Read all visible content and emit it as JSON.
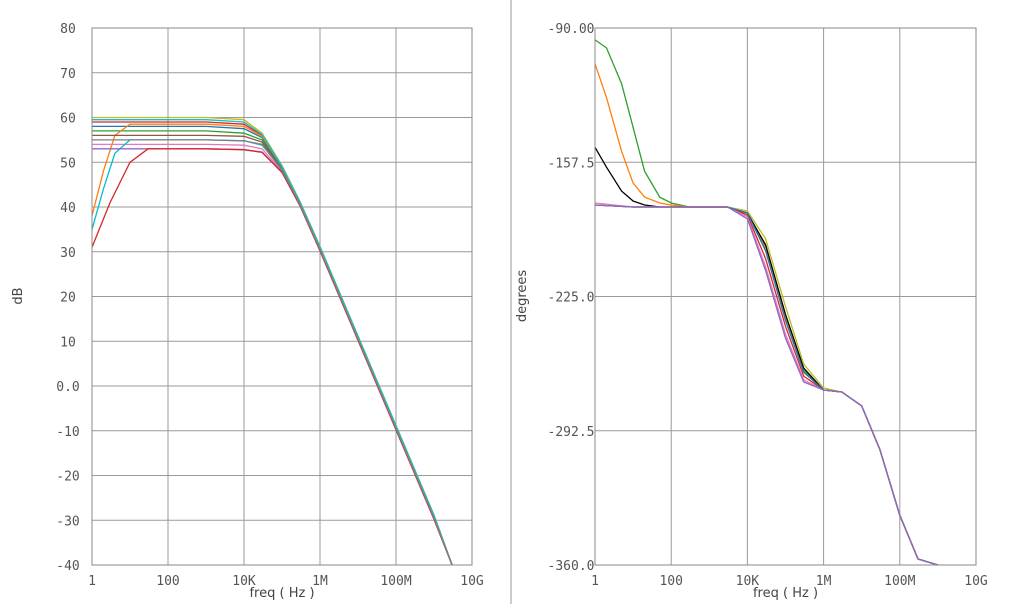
{
  "chart_data": [
    {
      "type": "line",
      "xscale": "log",
      "xlim": [
        1,
        10000000000.0
      ],
      "ylim": [
        -40,
        80
      ],
      "xlabel": "freq ( Hz )",
      "ylabel": "dB",
      "xtick_labels": [
        "1",
        "100",
        "10K",
        "1M",
        "100M",
        "10G"
      ],
      "ytick_labels": [
        "80",
        "70",
        "60",
        "50",
        "40",
        "30",
        "20",
        "10",
        "0.0",
        "-10",
        "-20",
        "-30",
        "-40"
      ],
      "grid": true,
      "series": [
        {
          "color": "#d62728",
          "values": {
            "x": [
              1,
              10,
              100,
              1000,
              10000,
              30000,
              100000,
              300000,
              1000000,
              10000000,
              100000000,
              1000000000,
              3000000000
            ],
            "y": [
              59,
              59,
              59,
              59,
              58.5,
              56,
              49,
              41,
              31,
              11,
              -9,
              -29,
              -40
            ]
          }
        },
        {
          "color": "#2ca02c",
          "values": {
            "x": [
              1,
              10,
              100,
              1000,
              10000,
              30000,
              100000,
              300000,
              1000000,
              10000000,
              100000000,
              1000000000,
              3000000000
            ],
            "y": [
              57,
              57,
              57,
              57,
              56.5,
              55,
              48.5,
              40.5,
              30.5,
              10.5,
              -9.5,
              -29.5,
              -40
            ]
          }
        },
        {
          "color": "#1f77b4",
          "values": {
            "x": [
              1,
              10,
              100,
              1000,
              10000,
              30000,
              100000,
              300000,
              1000000,
              10000000,
              100000000,
              1000000000,
              3000000000
            ],
            "y": [
              58,
              58,
              58,
              58,
              57.5,
              55.5,
              48.8,
              40.8,
              30.8,
              10.8,
              -9.2,
              -29.2,
              -40
            ]
          }
        },
        {
          "color": "#ff7f0e",
          "values": {
            "x": [
              1,
              2,
              4,
              10,
              100,
              1000,
              10000,
              30000,
              100000,
              300000,
              1000000,
              10000000,
              100000000,
              1000000000,
              3000000000
            ],
            "y": [
              38,
              48,
              56,
              58.5,
              58.5,
              58.5,
              58,
              55.8,
              49,
              41,
              31,
              11,
              -9,
              -29,
              -40
            ]
          }
        },
        {
          "color": "#e377c2",
          "values": {
            "x": [
              1,
              10,
              100,
              1000,
              10000,
              30000,
              100000,
              300000,
              1000000,
              10000000,
              100000000,
              1000000000,
              3000000000
            ],
            "y": [
              54,
              54,
              54,
              54,
              53.8,
              53,
              48,
              40.5,
              30.5,
              10.5,
              -9.5,
              -29.5,
              -40
            ]
          }
        },
        {
          "color": "#00bcd4",
          "values": {
            "x": [
              1,
              2,
              4,
              10,
              100,
              1000,
              10000,
              30000,
              100000,
              300000,
              1000000,
              10000000,
              100000000,
              1000000000,
              3000000000
            ],
            "y": [
              35,
              44,
              52,
              55,
              55,
              55,
              54.8,
              53.8,
              48.5,
              40.5,
              30.5,
              10.5,
              -9.5,
              -29.5,
              -40
            ]
          }
        },
        {
          "color": "#9467bd",
          "values": {
            "x": [
              1,
              10,
              100,
              1000,
              10000,
              30000,
              100000,
              300000,
              1000000,
              10000000,
              100000000,
              1000000000,
              3000000000
            ],
            "y": [
              53,
              53,
              53,
              53,
              52.8,
              52.3,
              47.8,
              40.3,
              30.3,
              10.3,
              -9.7,
              -29.7,
              -40
            ]
          }
        },
        {
          "color": "#8c564b",
          "values": {
            "x": [
              1,
              10,
              100,
              1000,
              10000,
              30000,
              100000,
              300000,
              1000000,
              10000000,
              100000000,
              1000000000,
              3000000000
            ],
            "y": [
              56,
              56,
              56,
              56,
              55.8,
              54.5,
              48.3,
              40.6,
              30.6,
              10.6,
              -9.4,
              -29.4,
              -40
            ]
          }
        },
        {
          "color": "#bcbd22",
          "values": {
            "x": [
              1,
              10,
              100,
              1000,
              10000,
              30000,
              100000,
              300000,
              1000000,
              10000000,
              100000000,
              1000000000,
              3000000000
            ],
            "y": [
              60,
              60,
              60,
              60,
              59.5,
              56.5,
              49.3,
              41.2,
              31.2,
              11.2,
              -8.8,
              -28.8,
              -40
            ]
          }
        },
        {
          "color": "#d62728",
          "values": {
            "x": [
              1,
              3,
              10,
              30,
              100,
              1000,
              10000,
              30000,
              100000,
              300000,
              1000000,
              10000000,
              100000000,
              1000000000,
              3000000000
            ],
            "y": [
              31,
              41,
              50,
              53,
              53,
              53,
              52.8,
              52.2,
              47.7,
              40.2,
              30.2,
              10.2,
              -9.8,
              -29.8,
              -40
            ]
          }
        },
        {
          "color": "#17becf",
          "values": {
            "x": [
              1,
              10,
              100,
              1000,
              10000,
              30000,
              100000,
              300000,
              1000000,
              10000000,
              100000000,
              1000000000,
              3000000000
            ],
            "y": [
              59.5,
              59.5,
              59.5,
              59.5,
              59,
              56.2,
              49.1,
              41.1,
              31.1,
              11.1,
              -8.9,
              -28.9,
              -40
            ]
          }
        },
        {
          "color": "#7f7f7f",
          "values": {
            "x": [
              1,
              10,
              100,
              1000,
              10000,
              30000,
              100000,
              300000,
              1000000,
              10000000,
              100000000,
              1000000000,
              3000000000
            ],
            "y": [
              55,
              55,
              55,
              55,
              54.8,
              54,
              48.2,
              40.5,
              30.5,
              10.5,
              -9.5,
              -29.5,
              -40
            ]
          }
        }
      ]
    },
    {
      "type": "line",
      "xscale": "log",
      "xlim": [
        1,
        10000000000.0
      ],
      "ylim": [
        -360,
        -90
      ],
      "xlabel": "freq ( Hz )",
      "ylabel": "degrees",
      "xtick_labels": [
        "1",
        "100",
        "10K",
        "1M",
        "100M",
        "10G"
      ],
      "ytick_labels": [
        "-90.00",
        "-157.5",
        "-225.0",
        "-292.5",
        "-360.0"
      ],
      "grid": true,
      "series": [
        {
          "color": "#2ca02c",
          "values": {
            "x": [
              1,
              2,
              5,
              10,
              20,
              50,
              100,
              300,
              1000,
              3000,
              10000,
              30000,
              100000,
              300000,
              1000000,
              3000000,
              10000000,
              30000000,
              100000000,
              300000000,
              1000000000
            ],
            "y": [
              -96,
              -100,
              -118,
              -140,
              -162,
              -175,
              -178,
              -180,
              -180,
              -180,
              -183,
              -200,
              -235,
              -262,
              -272,
              -273,
              -280,
              -302,
              -335,
              -357,
              -360
            ]
          }
        },
        {
          "color": "#ff7f0e",
          "values": {
            "x": [
              1,
              2,
              5,
              10,
              20,
              50,
              100,
              300,
              1000,
              3000,
              10000,
              30000,
              100000,
              300000,
              1000000,
              3000000,
              10000000,
              30000000,
              100000000,
              300000000,
              1000000000
            ],
            "y": [
              -108,
              -125,
              -152,
              -168,
              -175,
              -178,
              -179,
              -180,
              -180,
              -180,
              -183,
              -201,
              -236,
              -263,
              -272,
              -273,
              -280,
              -302,
              -335,
              -357,
              -360
            ]
          }
        },
        {
          "color": "#000000",
          "values": {
            "x": [
              1,
              2,
              5,
              10,
              20,
              50,
              100,
              300,
              1000,
              3000,
              10000,
              30000,
              100000,
              300000,
              1000000,
              3000000,
              10000000,
              30000000,
              100000000,
              300000000,
              1000000000
            ],
            "y": [
              -150,
              -160,
              -172,
              -177,
              -179,
              -180,
              -180,
              -180,
              -180,
              -180,
              -183,
              -199,
              -234,
              -261,
              -272,
              -273,
              -280,
              -302,
              -335,
              -357,
              -360
            ]
          }
        },
        {
          "color": "#d62728",
          "values": {
            "x": [
              1,
              10,
              100,
              1000,
              3000,
              10000,
              30000,
              100000,
              300000,
              1000000,
              3000000,
              10000000,
              30000000,
              100000000,
              300000000,
              1000000000
            ],
            "y": [
              -179,
              -180,
              -180,
              -180,
              -180,
              -184,
              -206,
              -240,
              -265,
              -272,
              -273,
              -280,
              -302,
              -335,
              -357,
              -360
            ]
          }
        },
        {
          "color": "#e377c2",
          "values": {
            "x": [
              1,
              10,
              100,
              1000,
              3000,
              10000,
              30000,
              100000,
              300000,
              1000000,
              3000000,
              10000000,
              30000000,
              100000000,
              300000000,
              1000000000
            ],
            "y": [
              -178,
              -180,
              -180,
              -180,
              -180,
              -185,
              -210,
              -244,
              -267,
              -272,
              -273,
              -280,
              -302,
              -335,
              -357,
              -360
            ]
          }
        },
        {
          "color": "#bcbd22",
          "values": {
            "x": [
              1,
              10,
              100,
              1000,
              3000,
              10000,
              30000,
              100000,
              300000,
              1000000,
              3000000,
              10000000,
              30000000,
              100000000,
              300000000,
              1000000000
            ],
            "y": [
              -179,
              -180,
              -180,
              -180,
              -180,
              -182,
              -196,
              -230,
              -259,
              -271,
              -273,
              -280,
              -302,
              -335,
              -357,
              -360
            ]
          }
        },
        {
          "color": "#1f77b4",
          "values": {
            "x": [
              1,
              10,
              100,
              1000,
              3000,
              10000,
              30000,
              100000,
              300000,
              1000000,
              3000000,
              10000000,
              30000000,
              100000000,
              300000000,
              1000000000
            ],
            "y": [
              -179,
              -180,
              -180,
              -180,
              -180,
              -183,
              -202,
              -237,
              -263,
              -272,
              -273,
              -280,
              -302,
              -335,
              -357,
              -360
            ]
          }
        },
        {
          "color": "#9467bd",
          "values": {
            "x": [
              1,
              10,
              100,
              1000,
              3000,
              10000,
              30000,
              100000,
              300000,
              1000000,
              3000000,
              10000000,
              30000000,
              100000000,
              300000000,
              1000000000
            ],
            "y": [
              -179,
              -180,
              -180,
              -180,
              -180,
              -186,
              -212,
              -246,
              -268,
              -272,
              -273,
              -280,
              -302,
              -335,
              -357,
              -360
            ]
          }
        }
      ]
    }
  ]
}
